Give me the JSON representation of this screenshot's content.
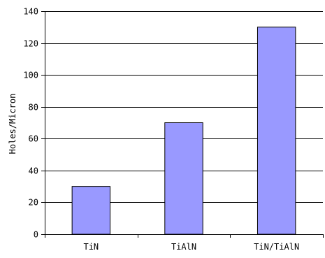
{
  "chart_data": {
    "type": "bar",
    "categories": [
      "TiN",
      "TiAlN",
      "TiN/TiAlN"
    ],
    "values": [
      30,
      70,
      130
    ],
    "title": "",
    "xlabel": "",
    "ylabel": "Holes/Micron",
    "ylim": [
      0,
      140
    ],
    "yticks": [
      0,
      20,
      40,
      60,
      80,
      100,
      120,
      140
    ],
    "grid": true,
    "legend": "none",
    "colors": {
      "bar_fill": "#9999ff",
      "bar_stroke": "#000000",
      "grid": "#000000",
      "background": "#ffffff"
    }
  }
}
